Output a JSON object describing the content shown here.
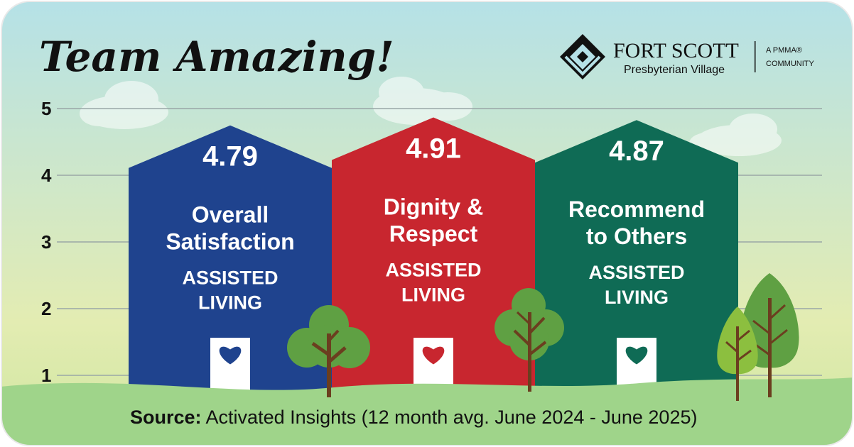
{
  "header": {
    "title": "Team Amazing!",
    "brand_name": "FORT SCOTT",
    "brand_sub": "Presbyterian Village",
    "affiliation_line1": "A PMMA®",
    "affiliation_line2": "COMMUNITY"
  },
  "chart_data": {
    "type": "bar",
    "title": "Team Amazing!",
    "categories": [
      "Overall Satisfaction",
      "Dignity & Respect",
      "Recommend to Others"
    ],
    "category_lines": [
      [
        "Overall",
        "Satisfaction"
      ],
      [
        "Dignity &",
        "Respect"
      ],
      [
        "Recommend",
        "to Others"
      ]
    ],
    "values": [
      4.79,
      4.91,
      4.87
    ],
    "value_labels": [
      "4.79",
      "4.91",
      "4.87"
    ],
    "group_lines": [
      "ASSISTED",
      "LIVING"
    ],
    "colors": [
      "#1f438e",
      "#c8262f",
      "#0f6b55"
    ],
    "yticks": [
      1,
      2,
      3,
      4,
      5
    ],
    "ylim": [
      1,
      5
    ],
    "xlabel": "",
    "ylabel": "",
    "grid": true
  },
  "footer": {
    "source_label": "Source:",
    "source_text": " Activated Insights (12 month avg. June 2024 - June 2025)"
  },
  "colors": {
    "sky_top": "#b5e1e7",
    "sky_bottom": "#e3ecb2",
    "ground": "#9fd48a",
    "gridline": "#9aa7a6",
    "text_dark": "#111111",
    "tree_light": "#8cbf3f",
    "tree_dark": "#5fa043",
    "trunk": "#6b3e1f"
  }
}
